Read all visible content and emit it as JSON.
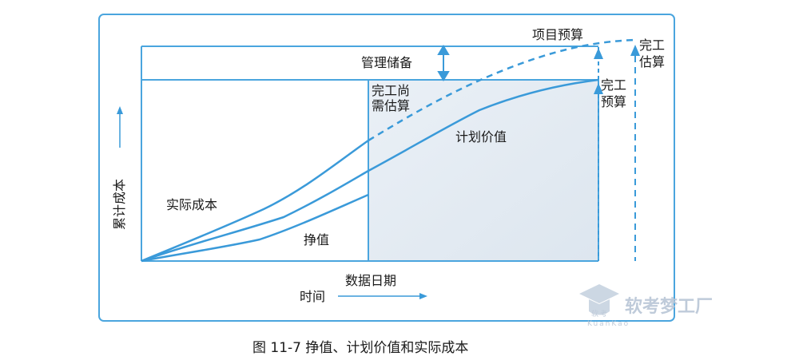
{
  "labels": {
    "budget": "项目预算",
    "reserve": "管理储备",
    "etc_line1": "完工尚",
    "etc_line2": "需估算",
    "pv": "计划价值",
    "ac": "实际成本",
    "ev": "挣值",
    "bac_line1": "完工",
    "bac_line2": "预算",
    "eac_line1": "完工",
    "eac_line2": "估算",
    "data_date": "数据日期",
    "y_axis": "累计成本",
    "x_axis": "时间",
    "caption": "图 11-7    挣值、计划价值和实际成本"
  },
  "watermark": {
    "brand": "软考梦工厂",
    "logo_text": "软考",
    "sub": "KuanKao"
  },
  "colors": {
    "line": "#3a9ad9",
    "frame": "#4aa5de",
    "shade": "#e3ebf3",
    "text": "#1a1a1a"
  }
}
